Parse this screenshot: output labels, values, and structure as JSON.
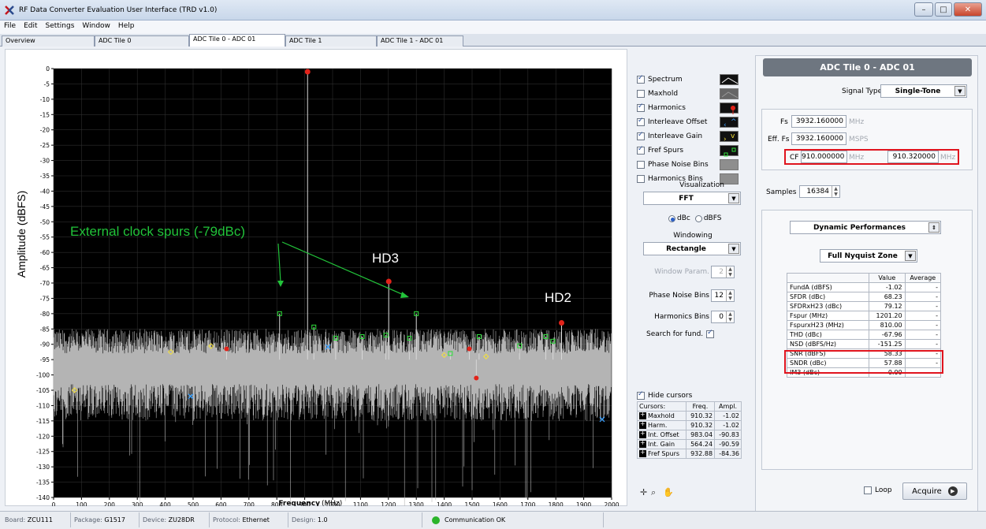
{
  "window": {
    "title": "RF Data Converter Evaluation User Interface (TRD v1.0)",
    "btn_min": "–",
    "btn_max": "□",
    "btn_close": "✕"
  },
  "menu": [
    "File",
    "Edit",
    "Settings",
    "Window",
    "Help"
  ],
  "tabs": [
    {
      "label": "Overview",
      "active": false
    },
    {
      "label": "ADC Tile 0",
      "active": false
    },
    {
      "label": "ADC Tile 0 - ADC 01",
      "active": true
    },
    {
      "label": "ADC Tile 1",
      "active": false
    },
    {
      "label": "ADC Tile 1 - ADC 01",
      "active": false
    }
  ],
  "plot": {
    "ylabel": "Amplitude (dBFS)",
    "xlabel_bold": "Frequency",
    "xlabel_unit": "(MHz)",
    "xlim": [
      0,
      2000
    ],
    "ylim": [
      -140,
      0
    ],
    "x_ticks": [
      "0",
      "100",
      "200",
      "300",
      "400",
      "500",
      "600",
      "700",
      "800",
      "900",
      "1000",
      "1100",
      "1200",
      "1300",
      "1400",
      "1500",
      "1600",
      "1700",
      "1800",
      "1900",
      "2000"
    ],
    "y_ticks": [
      "0",
      "-5",
      "-10",
      "-15",
      "-20",
      "-25",
      "-30",
      "-35",
      "-40",
      "-45",
      "-50",
      "-55",
      "-60",
      "-65",
      "-70",
      "-75",
      "-80",
      "-85",
      "-90",
      "-95",
      "-100",
      "-105",
      "-110",
      "-115",
      "-120",
      "-125",
      "-130",
      "-135",
      "-140"
    ],
    "background": "#000000",
    "noise_color": "#b4b4b4",
    "annotations": {
      "clock_spurs": "External clock spurs (-79dBc)",
      "hd3": "HD3",
      "hd2": "HD2"
    },
    "annotation_color": "#22c33a"
  },
  "chart_data": {
    "type": "line",
    "xlabel": "Frequency (MHz)",
    "ylabel": "Amplitude (dBFS)",
    "xlim": [
      0,
      2000
    ],
    "ylim": [
      -140,
      0
    ],
    "grid": true,
    "noise_floor_dbfs": -95,
    "fundamental": {
      "freq": 910.32,
      "ampl": -1.02
    },
    "harmonics": [
      {
        "freq": 910.32,
        "ampl": -1.02
      },
      {
        "freq": 1201.2,
        "ampl": -69.5
      },
      {
        "freq": 1820.6,
        "ampl": -83
      },
      {
        "freq": 620,
        "ampl": -91.5
      },
      {
        "freq": 1490,
        "ampl": -91.5
      },
      {
        "freq": 1515,
        "ampl": -101
      }
    ],
    "fref_spurs": [
      {
        "freq": 810,
        "ampl": -80
      },
      {
        "freq": 932.88,
        "ampl": -84.36
      },
      {
        "freq": 1011,
        "ampl": -88
      },
      {
        "freq": 1106,
        "ampl": -87.5
      },
      {
        "freq": 1191,
        "ampl": -87
      },
      {
        "freq": 1275,
        "ampl": -88
      },
      {
        "freq": 1300,
        "ampl": -80
      },
      {
        "freq": 1422,
        "ampl": -93
      },
      {
        "freq": 1525,
        "ampl": -87.5
      },
      {
        "freq": 1670,
        "ampl": -90.5
      },
      {
        "freq": 1764,
        "ampl": -87.5
      },
      {
        "freq": 1790,
        "ampl": -89
      }
    ],
    "interleave_gain": [
      {
        "freq": 75,
        "ampl": -105
      },
      {
        "freq": 420,
        "ampl": -92.5
      },
      {
        "freq": 564.24,
        "ampl": -90.59
      },
      {
        "freq": 1400,
        "ampl": -93.5
      },
      {
        "freq": 1550,
        "ampl": -94
      }
    ],
    "interleave_offset": [
      {
        "freq": 983.04,
        "ampl": -90.83
      },
      {
        "freq": 1966,
        "ampl": -114.5
      },
      {
        "freq": 491.52,
        "ampl": -107
      }
    ]
  },
  "options": {
    "checks": [
      {
        "label": "Spectrum",
        "checked": true,
        "icon": "spectrum-trace-icon"
      },
      {
        "label": "Maxhold",
        "checked": false,
        "icon": "maxhold-trace-icon"
      },
      {
        "label": "Harmonics",
        "checked": true,
        "icon": "harmonics-marker-icon"
      },
      {
        "label": "Interleave Offset",
        "checked": true,
        "icon": "interleave-offset-marker-icon"
      },
      {
        "label": "Interleave Gain",
        "checked": true,
        "icon": "interleave-gain-marker-icon"
      },
      {
        "label": "Fref Spurs",
        "checked": true,
        "icon": "fref-spur-marker-icon"
      },
      {
        "label": "Phase Noise Bins",
        "checked": false,
        "icon": "phase-noise-bins-icon"
      },
      {
        "label": "Harmonics Bins",
        "checked": false,
        "icon": "harmonics-bins-icon"
      }
    ],
    "visualization_label": "Visualization",
    "visualization_value": "FFT",
    "unit_dbc": "dBc",
    "unit_dbfs": "dBFS",
    "unit_selected": "dBc",
    "windowing_label": "Windowing",
    "windowing_value": "Rectangle",
    "window_param_label": "Window Param.",
    "window_param_value": "2",
    "phase_noise_bins_label": "Phase Noise Bins",
    "phase_noise_bins_value": "12",
    "harmonics_bins_label": "Harmonics Bins",
    "harmonics_bins_value": "0",
    "search_fund_label": "Search for fund.",
    "search_fund_checked": true,
    "hide_cursors_label": "Hide cursors",
    "hide_cursors_checked": true
  },
  "cursors": {
    "headers": [
      "Cursors:",
      "Freq.",
      "Ampl."
    ],
    "rows": [
      {
        "name": "Maxhold",
        "freq": "910.32",
        "ampl": "-1.02"
      },
      {
        "name": "Harm.",
        "freq": "910.32",
        "ampl": "-1.02"
      },
      {
        "name": "Int. Offset",
        "freq": "983.04",
        "ampl": "-90.83"
      },
      {
        "name": "Int. Gain",
        "freq": "564.24",
        "ampl": "-90.59"
      },
      {
        "name": "Fref Spurs",
        "freq": "932.88",
        "ampl": "-84.36"
      }
    ]
  },
  "right_panel": {
    "header": "ADC Tile 0 - ADC 01",
    "signal_type_label": "Signal Type",
    "signal_type_value": "Single-Tone",
    "fs_label": "Fs",
    "fs_value": "3932.160000",
    "fs_unit": "MHz",
    "eff_fs_label": "Eff. Fs",
    "eff_fs_value": "3932.160000",
    "eff_fs_unit": "MSPS",
    "cf_label": "CF",
    "cf_value": "910.000000",
    "cf_unit": "MHz",
    "cf_value2": "910.320000",
    "cf_unit2": "MHz",
    "samples_label": "Samples",
    "samples_value": "16384",
    "perf_dropdown": "Dynamic Performances",
    "zone_dropdown": "Full Nyquist Zone",
    "perf_headers": [
      "",
      "Value",
      "Average"
    ],
    "perf_rows": [
      {
        "metric": "FundA (dBFS)",
        "value": "-1.02",
        "avg": "-"
      },
      {
        "metric": "SFDR (dBc)",
        "value": "68.23",
        "avg": "-"
      },
      {
        "metric": "SFDRxH23 (dBc)",
        "value": "79.12",
        "avg": "-"
      },
      {
        "metric": "Fspur (MHz)",
        "value": "1201.20",
        "avg": "-"
      },
      {
        "metric": "FspurxH23 (MHz)",
        "value": "810.00",
        "avg": "-"
      },
      {
        "metric": "THD (dBc)",
        "value": "-67.96",
        "avg": "-"
      },
      {
        "metric": "NSD (dBFS/Hz)",
        "value": "-151.25",
        "avg": "-"
      },
      {
        "metric": "SNR (dBFS)",
        "value": "58.33",
        "avg": "-"
      },
      {
        "metric": "SNDR (dBc)",
        "value": "57.88",
        "avg": "-"
      },
      {
        "metric": "IM3 (dBc)",
        "value": "0.00",
        "avg": "-"
      }
    ],
    "loop_label": "Loop",
    "loop_checked": false,
    "acquire_label": "Acquire",
    "highlight_color": "#e0141e"
  },
  "status": {
    "board_label": "Board:",
    "board_value": "ZCU111",
    "package_label": "Package:",
    "package_value": "G1517",
    "device_label": "Device:",
    "device_value": "ZU28DR",
    "protocol_label": "Protocol:",
    "protocol_value": "Ethernet",
    "design_label": "Design:",
    "design_value": "1.0",
    "comm_text": "Communication OK",
    "comm_color": "#2bb42b"
  }
}
